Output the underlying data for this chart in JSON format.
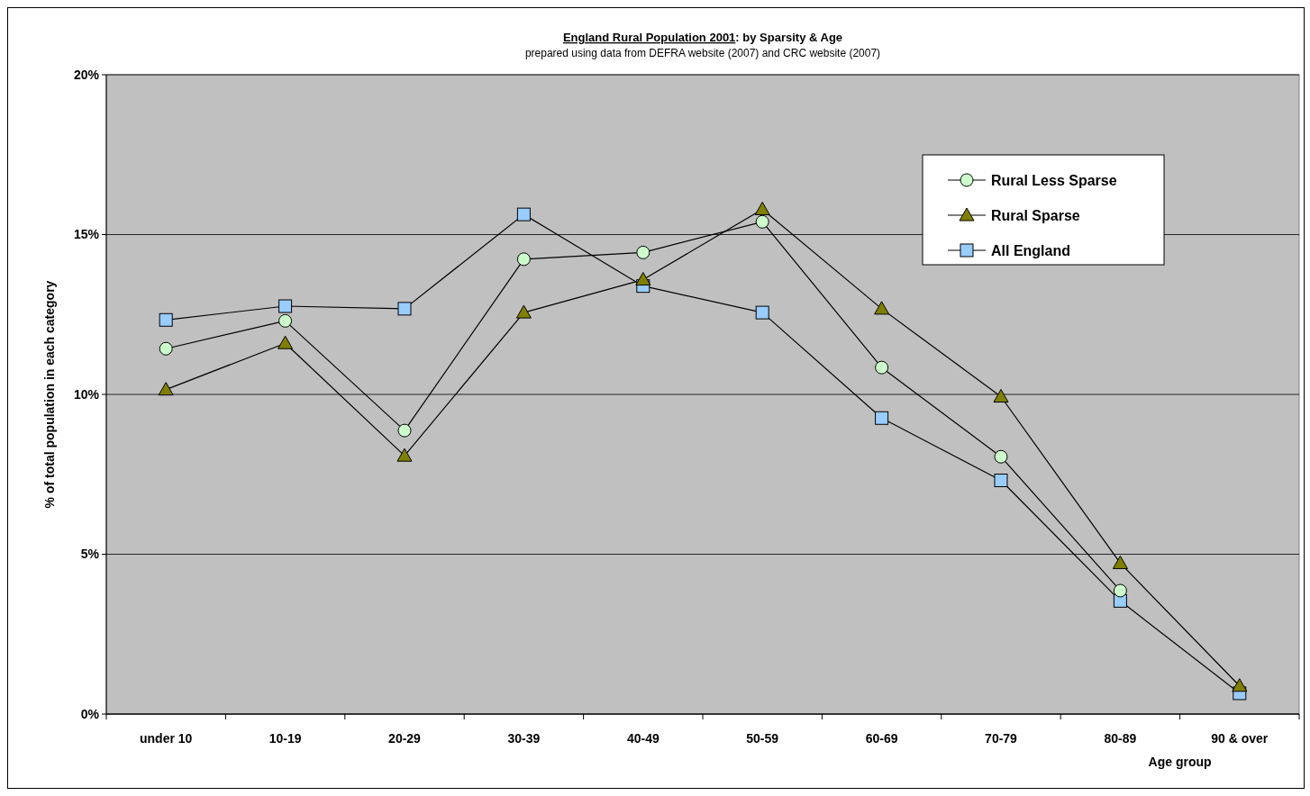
{
  "chart_data": {
    "type": "line",
    "title": "England Rural Population 2001: by Sparsity & Age",
    "subtitle": "prepared using data from DEFRA website (2007) and CRC website (2007)",
    "xlabel": "Age group",
    "ylabel": "% of total population in each category",
    "categories": [
      "under 10",
      "10-19",
      "20-29",
      "30-39",
      "40-49",
      "50-59",
      "60-69",
      "70-79",
      "80-89",
      "90 & over"
    ],
    "series": [
      {
        "name": "Rural Less Sparse",
        "color": "#ccffcc",
        "marker": "circle",
        "values": [
          11.43,
          12.3,
          8.87,
          14.23,
          14.44,
          15.4,
          10.84,
          8.05,
          3.86,
          null
        ]
      },
      {
        "name": "Rural Sparse",
        "color": "#808000",
        "marker": "triangle",
        "values": [
          10.15,
          11.6,
          8.08,
          12.56,
          13.59,
          15.79,
          12.68,
          9.93,
          4.72,
          0.88
        ]
      },
      {
        "name": "All England",
        "color": "#99ccff",
        "marker": "square",
        "values": [
          12.33,
          12.76,
          12.68,
          15.63,
          13.39,
          12.56,
          9.26,
          7.31,
          3.54,
          0.65
        ]
      }
    ],
    "ylim": [
      0,
      20
    ],
    "yticks": [
      {
        "value": 0,
        "label": "0%"
      },
      {
        "value": 5,
        "label": "5%"
      },
      {
        "value": 10,
        "label": "10%"
      },
      {
        "value": 15,
        "label": "15%"
      },
      {
        "value": 20,
        "label": "20%"
      }
    ],
    "grid": "y",
    "legend": "top right"
  }
}
